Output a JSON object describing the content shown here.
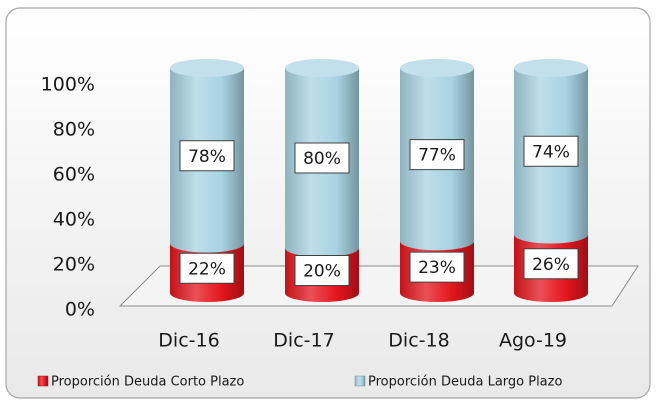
{
  "chart_data": {
    "type": "bar",
    "stacked": true,
    "categories": [
      "Dic-16",
      "Dic-17",
      "Dic-18",
      "Ago-19"
    ],
    "series": [
      {
        "name": "Proporción Deuda Corto Plazo",
        "color": "#e3161d",
        "values": [
          22,
          20,
          23,
          26
        ],
        "value_labels": [
          "22%",
          "20%",
          "23%",
          "26%"
        ]
      },
      {
        "name": "Proporción Deuda Largo Plazo",
        "color": "#a8d3e2",
        "values": [
          78,
          80,
          77,
          74
        ],
        "value_labels": [
          "78%",
          "80%",
          "77%",
          "74%"
        ]
      }
    ],
    "ylim": [
      0,
      100
    ],
    "yticks": [
      {
        "value": 0,
        "label": "0%"
      },
      {
        "value": 20,
        "label": "20%"
      },
      {
        "value": 40,
        "label": "40%"
      },
      {
        "value": 60,
        "label": "60%"
      },
      {
        "value": 80,
        "label": "80%"
      },
      {
        "value": 100,
        "label": "100%"
      }
    ],
    "legend": "bottom"
  }
}
